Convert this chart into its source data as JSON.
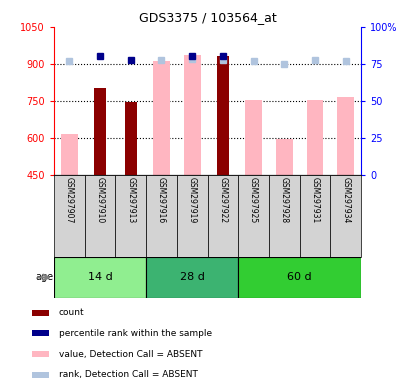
{
  "title": "GDS3375 / 103564_at",
  "samples": [
    "GSM297907",
    "GSM297910",
    "GSM297913",
    "GSM297916",
    "GSM297919",
    "GSM297922",
    "GSM297925",
    "GSM297928",
    "GSM297931",
    "GSM297934"
  ],
  "value_absent": [
    615,
    null,
    null,
    910,
    935,
    null,
    755,
    595,
    755,
    765
  ],
  "rank_absent_left": [
    910,
    null,
    null,
    915,
    920,
    915,
    910,
    900,
    915,
    912
  ],
  "count_present": [
    null,
    800,
    745,
    null,
    null,
    930,
    null,
    null,
    null,
    null
  ],
  "percentile_present_left": [
    null,
    930,
    915,
    null,
    930,
    930,
    null,
    null,
    null,
    null
  ],
  "ages": [
    {
      "label": "14 d",
      "start": 0,
      "end": 3,
      "color": "#90EE90"
    },
    {
      "label": "28 d",
      "start": 3,
      "end": 6,
      "color": "#3CB371"
    },
    {
      "label": "60 d",
      "start": 6,
      "end": 10,
      "color": "#32CD32"
    }
  ],
  "ylim_left": [
    450,
    1050
  ],
  "ylim_right": [
    0,
    100
  ],
  "yticks_left": [
    450,
    600,
    750,
    900,
    1050
  ],
  "yticks_right": [
    0,
    25,
    50,
    75,
    100
  ],
  "count_color": "#8B0000",
  "percentile_color": "#00008B",
  "value_absent_color": "#FFB6C1",
  "rank_absent_color": "#B0C4DE",
  "legend_items": [
    {
      "color": "#8B0000",
      "label": "count"
    },
    {
      "color": "#00008B",
      "label": "percentile rank within the sample"
    },
    {
      "color": "#FFB6C1",
      "label": "value, Detection Call = ABSENT"
    },
    {
      "color": "#B0C4DE",
      "label": "rank, Detection Call = ABSENT"
    }
  ]
}
